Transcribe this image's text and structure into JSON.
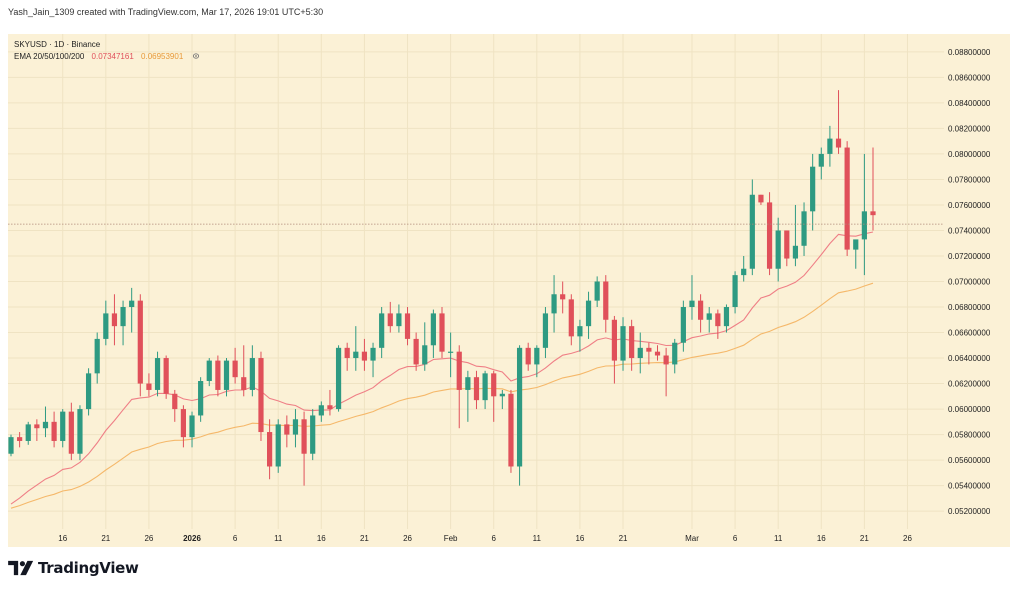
{
  "header": {
    "credit": "Yash_Jain_1309 created with TradingView.com, Mar 17, 2026 19:01 UTC+5:30"
  },
  "legend": {
    "symbol_line": "SKYUSD · 1D · Binance",
    "ema_label": "EMA 20/50/100/200",
    "ema20_value": "0.07347161",
    "ema50_value": "0.06953901",
    "eye_icon": "eye-icon"
  },
  "brand": {
    "name": "TradingView",
    "logo_icon": "tradingview-logo-icon"
  },
  "colors": {
    "background": "#fbf1d6",
    "up": "#2e9a82",
    "down": "#e0505a",
    "ema20": "#ef7f86",
    "ema50": "#f5b86a",
    "price_line": "#b08a7a"
  },
  "chart_data": {
    "type": "candlestick",
    "symbol": "SKYUSD",
    "timeframe": "1D",
    "exchange": "Binance",
    "ylim": [
      0.0506,
      0.0894
    ],
    "y_ticks": [
      "0.05200000",
      "0.05400000",
      "0.05600000",
      "0.05800000",
      "0.06000000",
      "0.06200000",
      "0.06400000",
      "0.06600000",
      "0.06800000",
      "0.07000000",
      "0.07200000",
      "0.07400000",
      "0.07600000",
      "0.07800000",
      "0.08000000",
      "0.08200000",
      "0.08400000",
      "0.08600000",
      "0.08800000"
    ],
    "x_ticks": [
      "16",
      "21",
      "26",
      "2026",
      "6",
      "11",
      "16",
      "21",
      "26",
      "Feb",
      "6",
      "11",
      "16",
      "21",
      "Mar",
      "6",
      "11",
      "16",
      "21",
      "26"
    ],
    "x_tick_index": [
      6,
      11,
      16,
      21,
      26,
      31,
      36,
      41,
      46,
      51,
      56,
      61,
      66,
      71,
      79,
      84,
      89,
      94,
      99,
      104
    ],
    "last_price_line": 0.0745,
    "candles": [
      [
        0.0565,
        0.058,
        0.0563,
        0.0578
      ],
      [
        0.0578,
        0.0582,
        0.057,
        0.0575
      ],
      [
        0.0575,
        0.059,
        0.0572,
        0.0588
      ],
      [
        0.0588,
        0.0592,
        0.0575,
        0.0585
      ],
      [
        0.0585,
        0.0602,
        0.0578,
        0.059
      ],
      [
        0.059,
        0.0598,
        0.057,
        0.0575
      ],
      [
        0.0575,
        0.06,
        0.057,
        0.0598
      ],
      [
        0.0598,
        0.0605,
        0.056,
        0.0565
      ],
      [
        0.0565,
        0.0603,
        0.056,
        0.06
      ],
      [
        0.06,
        0.0632,
        0.0595,
        0.0628
      ],
      [
        0.0628,
        0.066,
        0.062,
        0.0655
      ],
      [
        0.0655,
        0.0685,
        0.065,
        0.0675
      ],
      [
        0.0675,
        0.069,
        0.065,
        0.0665
      ],
      [
        0.0665,
        0.0685,
        0.065,
        0.068
      ],
      [
        0.068,
        0.0695,
        0.066,
        0.0685
      ],
      [
        0.0685,
        0.069,
        0.061,
        0.062
      ],
      [
        0.062,
        0.0628,
        0.061,
        0.0615
      ],
      [
        0.0615,
        0.0645,
        0.061,
        0.064
      ],
      [
        0.064,
        0.0642,
        0.0608,
        0.0612
      ],
      [
        0.0612,
        0.0615,
        0.059,
        0.06
      ],
      [
        0.06,
        0.0603,
        0.057,
        0.0578
      ],
      [
        0.0578,
        0.0598,
        0.057,
        0.0595
      ],
      [
        0.0595,
        0.0625,
        0.059,
        0.0622
      ],
      [
        0.0622,
        0.064,
        0.0618,
        0.0638
      ],
      [
        0.0638,
        0.0642,
        0.061,
        0.0615
      ],
      [
        0.0615,
        0.064,
        0.061,
        0.0638
      ],
      [
        0.0638,
        0.0648,
        0.062,
        0.0625
      ],
      [
        0.0625,
        0.065,
        0.061,
        0.0615
      ],
      [
        0.0615,
        0.065,
        0.061,
        0.064
      ],
      [
        0.064,
        0.0645,
        0.0575,
        0.0582
      ],
      [
        0.0582,
        0.0592,
        0.0545,
        0.0555
      ],
      [
        0.0555,
        0.0592,
        0.055,
        0.0588
      ],
      [
        0.0588,
        0.0595,
        0.057,
        0.058
      ],
      [
        0.058,
        0.06,
        0.057,
        0.0592
      ],
      [
        0.0592,
        0.0598,
        0.054,
        0.0565
      ],
      [
        0.0565,
        0.06,
        0.056,
        0.0595
      ],
      [
        0.0595,
        0.0606,
        0.059,
        0.0603
      ],
      [
        0.0603,
        0.0615,
        0.0595,
        0.06
      ],
      [
        0.06,
        0.065,
        0.0598,
        0.0648
      ],
      [
        0.0648,
        0.0652,
        0.063,
        0.064
      ],
      [
        0.064,
        0.0665,
        0.063,
        0.0645
      ],
      [
        0.0645,
        0.0655,
        0.063,
        0.0638
      ],
      [
        0.0638,
        0.0652,
        0.0625,
        0.0648
      ],
      [
        0.0648,
        0.068,
        0.064,
        0.0675
      ],
      [
        0.0675,
        0.0684,
        0.066,
        0.0665
      ],
      [
        0.0665,
        0.0682,
        0.066,
        0.0675
      ],
      [
        0.0675,
        0.068,
        0.065,
        0.0655
      ],
      [
        0.0655,
        0.066,
        0.063,
        0.0635
      ],
      [
        0.0635,
        0.0668,
        0.063,
        0.065
      ],
      [
        0.065,
        0.0678,
        0.064,
        0.0675
      ],
      [
        0.0675,
        0.068,
        0.064,
        0.0645
      ],
      [
        0.0645,
        0.066,
        0.0625,
        0.0645
      ],
      [
        0.0645,
        0.065,
        0.0585,
        0.0615
      ],
      [
        0.0615,
        0.063,
        0.059,
        0.0625
      ],
      [
        0.0625,
        0.063,
        0.06,
        0.0607
      ],
      [
        0.0607,
        0.063,
        0.06,
        0.0628
      ],
      [
        0.0628,
        0.063,
        0.059,
        0.061
      ],
      [
        0.061,
        0.0615,
        0.06,
        0.0612
      ],
      [
        0.0612,
        0.0615,
        0.055,
        0.0555
      ],
      [
        0.0555,
        0.065,
        0.054,
        0.0648
      ],
      [
        0.0648,
        0.0652,
        0.063,
        0.0635
      ],
      [
        0.0635,
        0.065,
        0.0625,
        0.0648
      ],
      [
        0.0648,
        0.068,
        0.064,
        0.0675
      ],
      [
        0.0675,
        0.0705,
        0.066,
        0.069
      ],
      [
        0.069,
        0.07,
        0.0675,
        0.0686
      ],
      [
        0.0686,
        0.069,
        0.065,
        0.0657
      ],
      [
        0.0657,
        0.067,
        0.0645,
        0.0665
      ],
      [
        0.0665,
        0.0692,
        0.0655,
        0.0685
      ],
      [
        0.0685,
        0.0704,
        0.068,
        0.07
      ],
      [
        0.07,
        0.0705,
        0.066,
        0.067
      ],
      [
        0.067,
        0.0673,
        0.062,
        0.0638
      ],
      [
        0.0638,
        0.0672,
        0.063,
        0.0665
      ],
      [
        0.0665,
        0.067,
        0.063,
        0.064
      ],
      [
        0.064,
        0.066,
        0.0628,
        0.0648
      ],
      [
        0.0648,
        0.0652,
        0.0635,
        0.0645
      ],
      [
        0.0645,
        0.065,
        0.0638,
        0.0642
      ],
      [
        0.0642,
        0.0648,
        0.061,
        0.0635
      ],
      [
        0.0635,
        0.0655,
        0.0628,
        0.0652
      ],
      [
        0.0652,
        0.0685,
        0.0645,
        0.068
      ],
      [
        0.068,
        0.0705,
        0.067,
        0.0685
      ],
      [
        0.0685,
        0.069,
        0.066,
        0.067
      ],
      [
        0.067,
        0.068,
        0.066,
        0.0675
      ],
      [
        0.0675,
        0.0678,
        0.0655,
        0.0665
      ],
      [
        0.0665,
        0.0682,
        0.066,
        0.068
      ],
      [
        0.068,
        0.0708,
        0.0675,
        0.0705
      ],
      [
        0.0705,
        0.072,
        0.07,
        0.071
      ],
      [
        0.071,
        0.078,
        0.0705,
        0.0768
      ],
      [
        0.0768,
        0.0768,
        0.076,
        0.0762
      ],
      [
        0.0762,
        0.077,
        0.0705,
        0.071
      ],
      [
        0.071,
        0.075,
        0.07,
        0.074
      ],
      [
        0.074,
        0.074,
        0.0712,
        0.0718
      ],
      [
        0.0718,
        0.076,
        0.0712,
        0.0728
      ],
      [
        0.0728,
        0.0762,
        0.072,
        0.0755
      ],
      [
        0.0755,
        0.08,
        0.074,
        0.079
      ],
      [
        0.079,
        0.0805,
        0.078,
        0.08
      ],
      [
        0.08,
        0.0822,
        0.079,
        0.0812
      ],
      [
        0.0812,
        0.085,
        0.08,
        0.0805
      ],
      [
        0.0805,
        0.081,
        0.072,
        0.0725
      ],
      [
        0.0725,
        0.073,
        0.071,
        0.0733
      ],
      [
        0.0733,
        0.08,
        0.0705,
        0.0755
      ],
      [
        0.0755,
        0.0805,
        0.074,
        0.0752
      ]
    ]
  }
}
